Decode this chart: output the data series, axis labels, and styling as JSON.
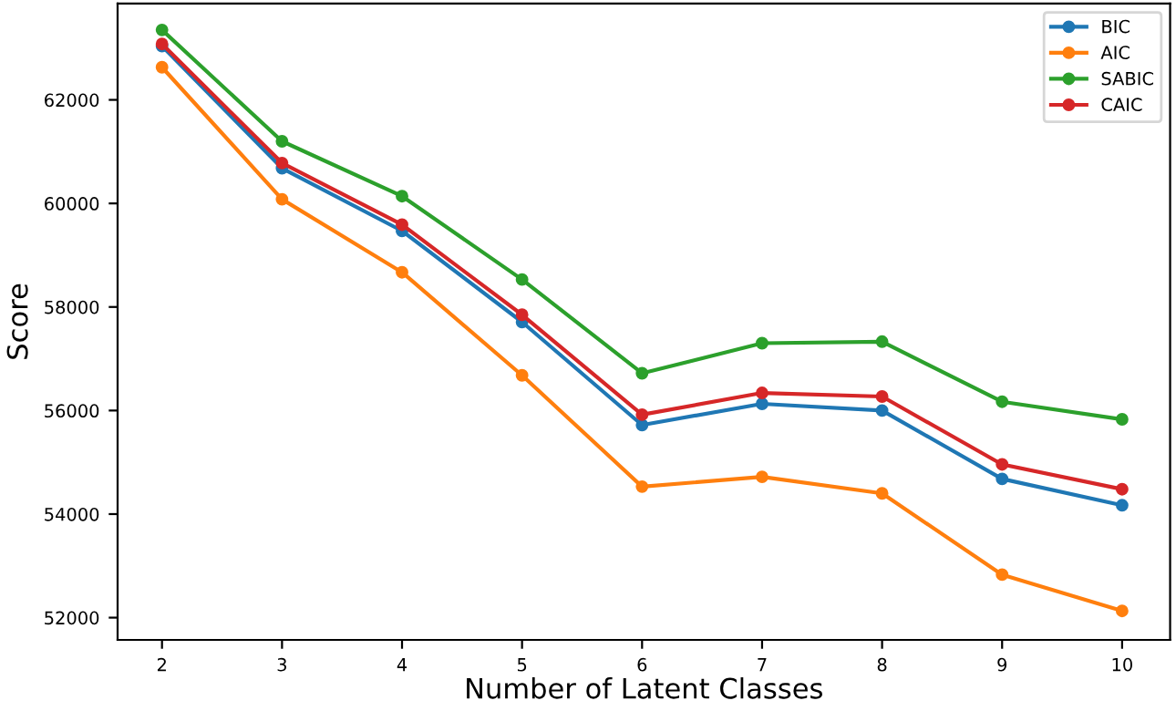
{
  "chart_data": {
    "type": "line",
    "xlabel": "Number of Latent Classes",
    "ylabel": "Score",
    "x": [
      2,
      3,
      4,
      5,
      6,
      7,
      8,
      9,
      10
    ],
    "series": [
      {
        "name": "BIC",
        "color": "#1f77b4",
        "values": [
          63040,
          60680,
          59470,
          57710,
          55720,
          56130,
          56000,
          54680,
          54170
        ]
      },
      {
        "name": "AIC",
        "color": "#ff7f0e",
        "values": [
          62630,
          60080,
          58670,
          56680,
          54530,
          54720,
          54400,
          52830,
          52130
        ]
      },
      {
        "name": "SABIC",
        "color": "#2ca02c",
        "values": [
          63350,
          61200,
          60140,
          58530,
          56720,
          57300,
          57330,
          56170,
          55830
        ]
      },
      {
        "name": "CAIC",
        "color": "#d62728",
        "values": [
          63080,
          60780,
          59590,
          57850,
          55920,
          56340,
          56270,
          54960,
          54480
        ]
      }
    ],
    "xlim": [
      1.63,
      10.4
    ],
    "ylim": [
      51570,
      63860
    ],
    "xticks": [
      2,
      3,
      4,
      5,
      6,
      7,
      8,
      9,
      10
    ],
    "yticks": [
      52000,
      54000,
      56000,
      58000,
      60000,
      62000
    ],
    "marker": "circle",
    "line_style": "solid",
    "legend": "top right",
    "grid": false
  }
}
